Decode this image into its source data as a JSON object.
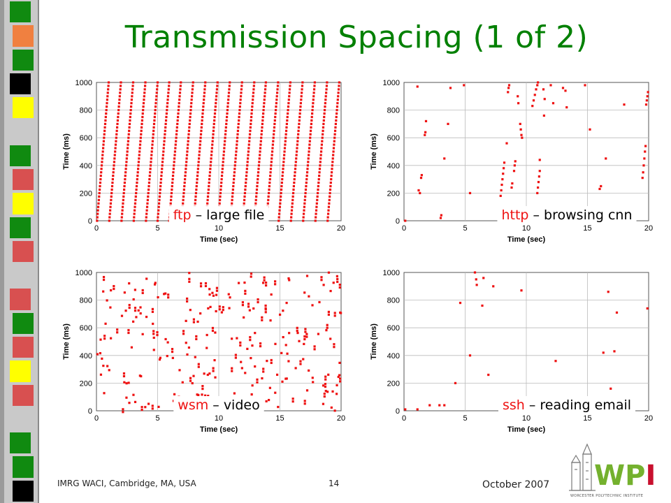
{
  "title": "Transmission Spacing (1 of 2)",
  "footer": {
    "left": "IMRG WACI, Cambridge, MA, USA",
    "page": "14",
    "date": "October 2007"
  },
  "logo": {
    "text": "WPI",
    "subtext": "WORCESTER POLYTECHNIC INSTITUTE"
  },
  "colors": {
    "title": "#008000",
    "marker": "#ee1111",
    "caption_keyword": "#ee1111",
    "caption_text": "#000000",
    "logo_green": "#74b12e",
    "logo_red": "#c8102e",
    "logo_gray": "#7a7a7a"
  },
  "chart_data": [
    {
      "type": "scatter",
      "caption": {
        "keyword": "ftp",
        "text": " – large file"
      },
      "xlabel": "Time (sec)",
      "ylabel": "Time (ms)",
      "xlim": [
        0,
        20
      ],
      "ylim": [
        0,
        1000
      ],
      "xticks": [
        0,
        5,
        10,
        15,
        20
      ],
      "yticks": [
        0,
        200,
        400,
        600,
        800,
        1000
      ],
      "grid": true,
      "pattern": "sawtooth",
      "ramp_starts": [
        0.05,
        1.05,
        2.05,
        3.05,
        4.05,
        5.0,
        5.95,
        6.95,
        7.95,
        8.95,
        9.95,
        10.95,
        11.95,
        12.9,
        13.9,
        14.9,
        15.9,
        16.9,
        17.9,
        18.9
      ],
      "ramp_ends": [
        1.0,
        2.0,
        3.0,
        4.0,
        5.0,
        5.95,
        6.9,
        7.9,
        8.9,
        9.9,
        10.9,
        11.9,
        12.9,
        13.85,
        14.85,
        15.85,
        16.85,
        17.85,
        18.85,
        19.85
      ]
    },
    {
      "type": "scatter",
      "caption": {
        "keyword": "http",
        "text": " – browsing cnn"
      },
      "xlabel": "Time (sec)",
      "ylabel": "Time (ms)",
      "xlim": [
        0,
        20
      ],
      "ylim": [
        0,
        1000
      ],
      "xticks": [
        0,
        5,
        10,
        15,
        20
      ],
      "yticks": [
        0,
        200,
        400,
        600,
        800,
        1000
      ],
      "grid": true,
      "points": [
        [
          0.1,
          0
        ],
        [
          1.1,
          970
        ],
        [
          1.2,
          220
        ],
        [
          1.3,
          200
        ],
        [
          1.4,
          310
        ],
        [
          1.45,
          330
        ],
        [
          1.7,
          620
        ],
        [
          1.75,
          640
        ],
        [
          1.8,
          720
        ],
        [
          3.0,
          20
        ],
        [
          3.05,
          40
        ],
        [
          3.3,
          450
        ],
        [
          3.6,
          700
        ],
        [
          3.8,
          960
        ],
        [
          4.9,
          980
        ],
        [
          5.4,
          200
        ],
        [
          7.9,
          180
        ],
        [
          7.95,
          220
        ],
        [
          8.0,
          260
        ],
        [
          8.05,
          300
        ],
        [
          8.1,
          340
        ],
        [
          8.15,
          380
        ],
        [
          8.2,
          420
        ],
        [
          8.4,
          560
        ],
        [
          8.5,
          930
        ],
        [
          8.55,
          960
        ],
        [
          8.6,
          980
        ],
        [
          8.8,
          240
        ],
        [
          8.85,
          270
        ],
        [
          9.0,
          360
        ],
        [
          9.05,
          400
        ],
        [
          9.1,
          430
        ],
        [
          9.3,
          900
        ],
        [
          9.35,
          850
        ],
        [
          9.5,
          700
        ],
        [
          9.55,
          660
        ],
        [
          9.6,
          620
        ],
        [
          9.65,
          600
        ],
        [
          10.5,
          830
        ],
        [
          10.6,
          870
        ],
        [
          10.7,
          910
        ],
        [
          10.8,
          950
        ],
        [
          10.9,
          980
        ],
        [
          10.95,
          1000
        ],
        [
          11.1,
          440
        ],
        [
          10.9,
          200
        ],
        [
          10.95,
          240
        ],
        [
          11.0,
          280
        ],
        [
          11.05,
          320
        ],
        [
          11.1,
          360
        ],
        [
          11.4,
          950
        ],
        [
          11.5,
          880
        ],
        [
          11.45,
          760
        ],
        [
          12.0,
          980
        ],
        [
          12.2,
          850
        ],
        [
          13.0,
          960
        ],
        [
          13.2,
          940
        ],
        [
          13.3,
          820
        ],
        [
          14.8,
          980
        ],
        [
          15.2,
          660
        ],
        [
          16.0,
          230
        ],
        [
          16.1,
          250
        ],
        [
          16.5,
          450
        ],
        [
          19.5,
          310
        ],
        [
          19.55,
          350
        ],
        [
          19.6,
          400
        ],
        [
          19.65,
          450
        ],
        [
          19.7,
          500
        ],
        [
          19.75,
          540
        ],
        [
          19.8,
          840
        ],
        [
          19.85,
          870
        ],
        [
          19.9,
          900
        ],
        [
          19.95,
          930
        ],
        [
          18.0,
          840
        ]
      ]
    },
    {
      "type": "scatter",
      "caption": {
        "keyword": "wsm",
        "text": " – video"
      },
      "xlabel": "Time (sec)",
      "ylabel": "Time (ms)",
      "xlim": [
        0,
        20
      ],
      "ylim": [
        0,
        1000
      ],
      "xticks": [
        0,
        5,
        10,
        15,
        20
      ],
      "yticks": [
        0,
        200,
        400,
        600,
        800,
        1000
      ],
      "grid": true,
      "pattern": "random",
      "approx_count": 260
    },
    {
      "type": "scatter",
      "caption": {
        "keyword": "ssh",
        "text": " – reading email"
      },
      "xlabel": "Time (sec)",
      "ylabel": "Time (ms)",
      "xlim": [
        0,
        20
      ],
      "ylim": [
        0,
        1000
      ],
      "xticks": [
        0,
        5,
        10,
        15,
        20
      ],
      "yticks": [
        0,
        200,
        400,
        600,
        800,
        1000
      ],
      "grid": true,
      "points": [
        [
          0.1,
          10
        ],
        [
          1.1,
          10
        ],
        [
          2.1,
          40
        ],
        [
          2.9,
          40
        ],
        [
          3.3,
          40
        ],
        [
          4.2,
          200
        ],
        [
          4.6,
          780
        ],
        [
          5.4,
          400
        ],
        [
          5.8,
          1000
        ],
        [
          5.9,
          950
        ],
        [
          5.95,
          910
        ],
        [
          6.5,
          960
        ],
        [
          6.4,
          760
        ],
        [
          6.9,
          260
        ],
        [
          7.3,
          900
        ],
        [
          9.6,
          870
        ],
        [
          12.4,
          360
        ],
        [
          16.3,
          420
        ],
        [
          16.7,
          860
        ],
        [
          16.9,
          160
        ],
        [
          17.2,
          430
        ],
        [
          17.4,
          710
        ],
        [
          19.9,
          740
        ]
      ]
    }
  ]
}
